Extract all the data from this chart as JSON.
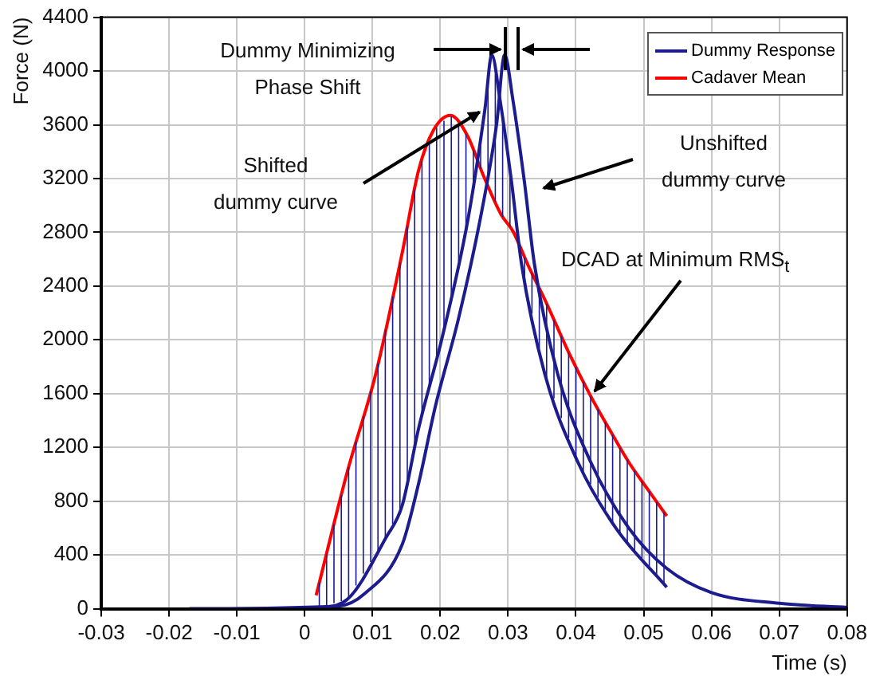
{
  "chart_data": {
    "type": "line",
    "xlabel": "Time (s)",
    "ylabel": "Force (N)",
    "xlim": [
      -0.03,
      0.08
    ],
    "xticks": [
      -0.03,
      -0.02,
      -0.01,
      0,
      0.01,
      0.02,
      0.03,
      0.04,
      0.05,
      0.06,
      0.07,
      0.08
    ],
    "ylim": [
      0,
      4400
    ],
    "yticks": [
      0,
      400,
      800,
      1200,
      1600,
      2000,
      2400,
      2800,
      3200,
      3600,
      4000,
      4400
    ],
    "grid": true,
    "legend": "top right",
    "marker": "none",
    "line_style": "solid",
    "series": [
      {
        "name": "Dummy Response",
        "color": "#1c1c8f",
        "x": [
          -0.017,
          0.005,
          0.0088,
          0.0144,
          0.0168,
          0.0193,
          0.0227,
          0.0259,
          0.0283,
          0.0295,
          0.0307,
          0.0324,
          0.0339,
          0.0373,
          0.0422,
          0.0478,
          0.0534,
          0.06,
          0.07,
          0.08
        ],
        "values": [
          0,
          20,
          110,
          480,
          930,
          1510,
          2160,
          2900,
          3600,
          4120,
          3790,
          3180,
          2560,
          1750,
          1090,
          600,
          300,
          120,
          40,
          10
        ]
      },
      {
        "color": "#1c1c8f",
        "x": [
          0.0017,
          0.0063,
          0.012,
          0.0144,
          0.0168,
          0.0202,
          0.0241,
          0.0266,
          0.0276,
          0.0288,
          0.0305,
          0.032,
          0.0354,
          0.0403,
          0.0459,
          0.0534
        ],
        "values": [
          0,
          70,
          530,
          770,
          1340,
          2000,
          2900,
          3720,
          4120,
          3790,
          3180,
          2560,
          1750,
          1090,
          600,
          160
        ]
      },
      {
        "name": "Cadaver Mean",
        "color": "#ff0000",
        "x": [
          0.0017,
          0.0063,
          0.0105,
          0.0144,
          0.0168,
          0.019,
          0.0215,
          0.0241,
          0.0263,
          0.029,
          0.0307,
          0.033,
          0.0356,
          0.039,
          0.0422,
          0.045,
          0.0478,
          0.051,
          0.0534
        ],
        "values": [
          100,
          1020,
          1750,
          2650,
          3260,
          3560,
          3670,
          3510,
          3230,
          2930,
          2810,
          2550,
          2280,
          1900,
          1580,
          1330,
          1090,
          860,
          690
        ]
      }
    ],
    "annotations": [
      "Dummy Minimizing Phase Shift",
      {
        "text": "Shifted dummy curve",
        "x": 0.0266,
        "y": 3720
      },
      "Unshifted dummy curve",
      {
        "text": "DCAD at Minimum RMS$_{t}$",
        "x": 0.0422,
        "y": 1580
      }
    ]
  }
}
